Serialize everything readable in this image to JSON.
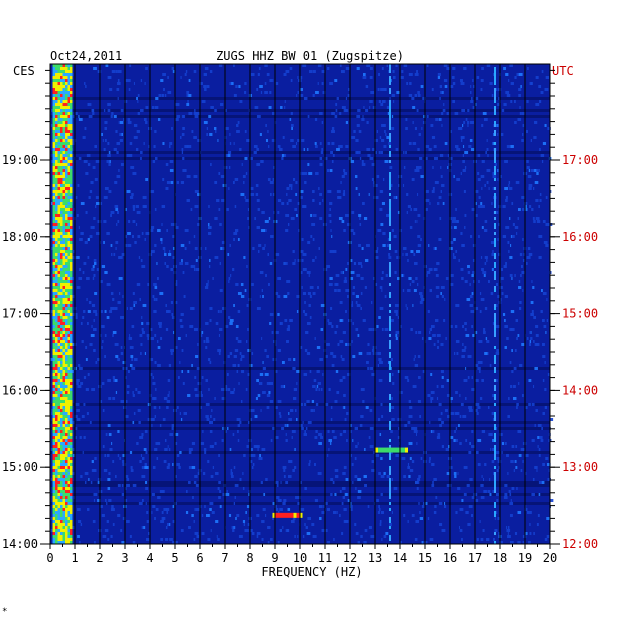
{
  "chart_data": {
    "type": "heatmap",
    "date": "Oct24,2011",
    "title": "ZUGS HHZ BW 01 (Zugspitze)",
    "left_timezone": "CES",
    "right_timezone": "UTC",
    "xlabel": "FREQUENCY (HZ)",
    "xlim": [
      0,
      20
    ],
    "x_ticks": [
      "0",
      "1",
      "2",
      "3",
      "4",
      "5",
      "6",
      "7",
      "8",
      "9",
      "10",
      "11",
      "12",
      "13",
      "14",
      "15",
      "16",
      "17",
      "18",
      "19",
      "20"
    ],
    "left_time_range": [
      "14:00",
      "20:15"
    ],
    "left_ticks": [
      {
        "hour": 19,
        "label": "19:00"
      },
      {
        "hour": 18,
        "label": "18:00"
      },
      {
        "hour": 17,
        "label": "17:00"
      },
      {
        "hour": 16,
        "label": "16:00"
      },
      {
        "hour": 15,
        "label": "15:00"
      },
      {
        "hour": 14,
        "label": "14:00"
      }
    ],
    "right_ticks": [
      {
        "hour": 19,
        "label": "17:00"
      },
      {
        "hour": 18,
        "label": "16:00"
      },
      {
        "hour": 17,
        "label": "15:00"
      },
      {
        "hour": 16,
        "label": "14:00"
      },
      {
        "hour": 15,
        "label": "13:00"
      },
      {
        "hour": 14,
        "label": "12:00"
      }
    ],
    "colors": {
      "background": "#0a1ea0",
      "low": "#0a1ea0",
      "mid": "#2aa8ff",
      "high_green": "#3cdc6a",
      "high_yellow": "#f0f000",
      "peak": "#ff2020",
      "utc_labels": "#cc0000",
      "ces_labels": "#000000"
    },
    "features": [
      {
        "name": "low-frequency band",
        "x_range": [
          0.1,
          0.7
        ],
        "intensity": "high"
      },
      {
        "name": "persistent line",
        "x": 13.6,
        "intensity": "medium"
      },
      {
        "name": "persistent line",
        "x": 17.8,
        "intensity": "medium"
      },
      {
        "name": "burst",
        "x_range": [
          8.9,
          10.0
        ],
        "time": "14:22",
        "intensity": "peak"
      },
      {
        "name": "burst",
        "x_range": [
          13.0,
          14.2
        ],
        "time": "15:13",
        "intensity": "high"
      }
    ]
  },
  "footer_mark": "*"
}
